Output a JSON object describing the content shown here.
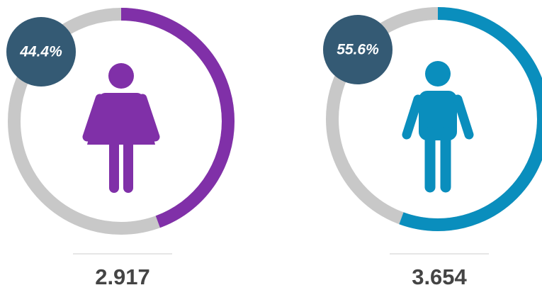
{
  "chart_data": [
    {
      "type": "donut",
      "values": [
        44.4
      ],
      "value_labels": [
        "44.4%"
      ],
      "color": "#8030a8",
      "track_color": "#c8c8c8",
      "badge_color": "#345a74",
      "icon": "female",
      "count": "2.917"
    },
    {
      "type": "donut",
      "values": [
        55.6
      ],
      "value_labels": [
        "55.6%"
      ],
      "color": "#0a8ebd",
      "track_color": "#c8c8c8",
      "badge_color": "#345a74",
      "icon": "male",
      "count": "3.654"
    }
  ]
}
